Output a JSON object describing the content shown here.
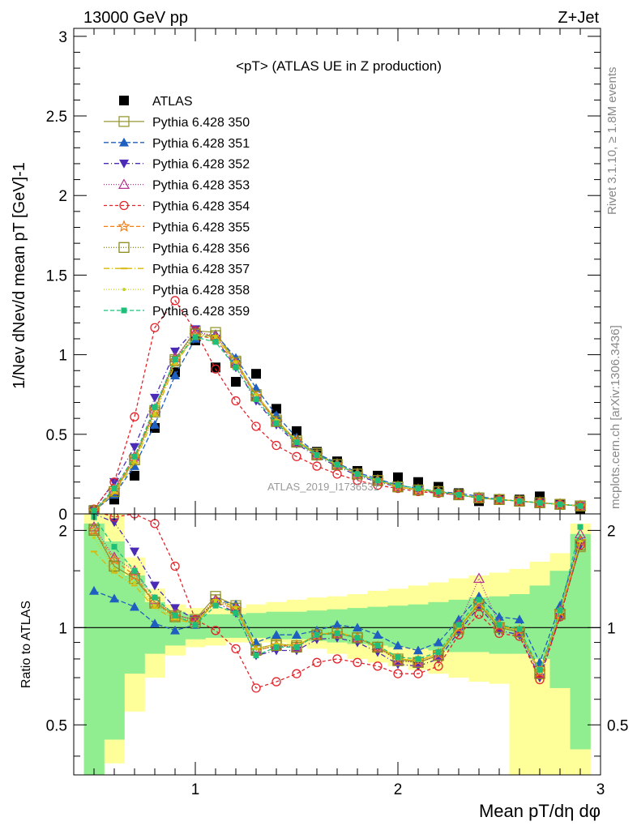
{
  "header": {
    "left": "13000 GeV pp",
    "right": "Z+Jet"
  },
  "side_labels": {
    "rivet": "Rivet 3.1.10, ≥ 1.8M events",
    "source": "mcplots.cern.ch [arXiv:1306.3436]"
  },
  "watermark": "ATLAS_2019_I1736531",
  "colors": {
    "band_green": "#90ee90",
    "band_yellow": "#ffff99",
    "data": "#000000"
  },
  "chart_data": [
    {
      "type": "line",
      "panel": "main",
      "title": "<pT> (ATLAS UE in Z production)",
      "xlabel": "Mean pT/dη dφ",
      "ylabel": "1/Nev dNev/d mean pT [GeV]-1",
      "xlim": [
        0.4,
        3.0
      ],
      "ylim": [
        0,
        3.05
      ],
      "yticks": [
        0,
        0.5,
        1,
        1.5,
        2,
        2.5,
        3
      ],
      "ytick_labels": [
        "0",
        "0.5",
        "1",
        "1.5",
        "2",
        "2.5",
        "3"
      ],
      "x": [
        0.5,
        0.6,
        0.7,
        0.8,
        0.9,
        1.0,
        1.1,
        1.2,
        1.3,
        1.4,
        1.5,
        1.6,
        1.7,
        1.8,
        1.9,
        2.0,
        2.1,
        2.2,
        2.3,
        2.4,
        2.5,
        2.6,
        2.7,
        2.8,
        2.9
      ],
      "series": [
        {
          "name": "ATLAS",
          "color": "#000000",
          "marker": "square-filled",
          "dash": "none",
          "values": [
            0.01,
            0.09,
            0.24,
            0.54,
            0.89,
            1.09,
            0.92,
            0.83,
            0.88,
            0.66,
            0.52,
            0.39,
            0.33,
            0.27,
            0.24,
            0.23,
            0.2,
            0.17,
            0.13,
            0.08,
            0.09,
            0.09,
            0.11,
            0.06,
            0.03
          ]
        },
        {
          "name": "Pythia 6.428 350",
          "color": "#999933",
          "marker": "square-open",
          "dash": "solid",
          "values": [
            0.02,
            0.14,
            0.34,
            0.65,
            0.97,
            1.15,
            1.14,
            0.96,
            0.75,
            0.59,
            0.46,
            0.38,
            0.31,
            0.25,
            0.21,
            0.17,
            0.15,
            0.14,
            0.12,
            0.1,
            0.09,
            0.08,
            0.07,
            0.06,
            0.05
          ]
        },
        {
          "name": "Pythia 6.428 351",
          "color": "#1f5fbf",
          "marker": "triangle-up-filled",
          "dash": "6,3",
          "values": [
            0.02,
            0.12,
            0.3,
            0.56,
            0.87,
            1.1,
            1.13,
            0.98,
            0.79,
            0.62,
            0.48,
            0.38,
            0.32,
            0.26,
            0.22,
            0.18,
            0.16,
            0.14,
            0.13,
            0.11,
            0.09,
            0.08,
            0.07,
            0.06,
            0.05
          ]
        },
        {
          "name": "Pythia 6.428 352",
          "color": "#4b2bb5",
          "marker": "triangle-down-filled",
          "dash": "6,3,1,3",
          "values": [
            0.03,
            0.2,
            0.42,
            0.73,
            1.02,
            1.16,
            1.1,
            0.92,
            0.71,
            0.56,
            0.44,
            0.36,
            0.3,
            0.24,
            0.2,
            0.17,
            0.15,
            0.13,
            0.12,
            0.1,
            0.09,
            0.08,
            0.07,
            0.06,
            0.05
          ]
        },
        {
          "name": "Pythia 6.428 353",
          "color": "#b5338f",
          "marker": "triangle-up-open",
          "dash": "1,2",
          "values": [
            0.02,
            0.15,
            0.36,
            0.66,
            0.98,
            1.14,
            1.12,
            0.95,
            0.74,
            0.58,
            0.45,
            0.37,
            0.31,
            0.25,
            0.21,
            0.17,
            0.15,
            0.14,
            0.12,
            0.1,
            0.09,
            0.08,
            0.07,
            0.06,
            0.05
          ]
        },
        {
          "name": "Pythia 6.428 354",
          "color": "#e3242b",
          "marker": "circle-open",
          "dash": "4,3",
          "values": [
            0.03,
            0.2,
            0.61,
            1.17,
            1.34,
            1.15,
            0.91,
            0.71,
            0.55,
            0.43,
            0.36,
            0.3,
            0.25,
            0.21,
            0.18,
            0.16,
            0.14,
            0.13,
            0.12,
            0.1,
            0.09,
            0.08,
            0.07,
            0.06,
            0.05
          ]
        },
        {
          "name": "Pythia 6.428 355",
          "color": "#ef7f1a",
          "marker": "star-open",
          "dash": "5,3",
          "values": [
            0.02,
            0.15,
            0.35,
            0.65,
            0.96,
            1.12,
            1.1,
            0.94,
            0.74,
            0.58,
            0.46,
            0.37,
            0.31,
            0.25,
            0.21,
            0.17,
            0.15,
            0.14,
            0.12,
            0.1,
            0.09,
            0.08,
            0.07,
            0.06,
            0.05
          ]
        },
        {
          "name": "Pythia 6.428 356",
          "color": "#8a8c1e",
          "marker": "square-open",
          "dash": "1,2",
          "values": [
            0.02,
            0.14,
            0.34,
            0.64,
            0.96,
            1.13,
            1.12,
            0.95,
            0.74,
            0.58,
            0.45,
            0.37,
            0.31,
            0.25,
            0.21,
            0.17,
            0.15,
            0.14,
            0.12,
            0.1,
            0.09,
            0.08,
            0.07,
            0.06,
            0.05
          ]
        },
        {
          "name": "Pythia 6.428 357",
          "color": "#d9b70c",
          "marker": "dash",
          "dash": "7,3,1,3",
          "values": [
            0.02,
            0.13,
            0.32,
            0.62,
            0.94,
            1.12,
            1.12,
            0.96,
            0.75,
            0.59,
            0.46,
            0.37,
            0.31,
            0.25,
            0.21,
            0.17,
            0.15,
            0.14,
            0.12,
            0.1,
            0.09,
            0.08,
            0.07,
            0.06,
            0.05
          ]
        },
        {
          "name": "Pythia 6.428 358",
          "color": "#c4d41c",
          "marker": "dot",
          "dash": "1,2",
          "values": [
            0.02,
            0.14,
            0.33,
            0.63,
            0.95,
            1.12,
            1.11,
            0.95,
            0.75,
            0.59,
            0.46,
            0.37,
            0.31,
            0.25,
            0.21,
            0.17,
            0.15,
            0.14,
            0.12,
            0.1,
            0.09,
            0.08,
            0.07,
            0.06,
            0.05
          ]
        },
        {
          "name": "Pythia 6.428 359",
          "color": "#1fbf7a",
          "marker": "square-small-filled",
          "dash": "5,3",
          "values": [
            0.02,
            0.16,
            0.36,
            0.67,
            0.97,
            1.11,
            1.08,
            0.92,
            0.72,
            0.57,
            0.45,
            0.37,
            0.31,
            0.25,
            0.21,
            0.18,
            0.16,
            0.14,
            0.12,
            0.1,
            0.09,
            0.08,
            0.07,
            0.06,
            0.05
          ]
        }
      ]
    },
    {
      "type": "line",
      "panel": "ratio",
      "ylabel": "Ratio to ATLAS",
      "xlabel": "Mean pT/dη dφ",
      "xlim": [
        0.4,
        3.0
      ],
      "ylim": [
        0.35,
        2.25
      ],
      "reference_line": 1,
      "xticks": [
        1,
        2,
        3
      ],
      "xtick_labels": [
        "1",
        "2",
        "3"
      ],
      "yticks": [
        0.5,
        1,
        2
      ],
      "ytick_labels": [
        "0.5",
        "1",
        "2"
      ],
      "x": [
        0.5,
        0.6,
        0.7,
        0.8,
        0.9,
        1.0,
        1.1,
        1.2,
        1.3,
        1.4,
        1.5,
        1.6,
        1.7,
        1.8,
        1.9,
        2.0,
        2.1,
        2.2,
        2.3,
        2.4,
        2.5,
        2.6,
        2.7,
        2.8,
        2.9
      ],
      "bands": {
        "green_lo": [
          0.35,
          0.45,
          0.72,
          0.83,
          0.88,
          0.92,
          0.93,
          0.93,
          0.93,
          0.92,
          0.92,
          0.91,
          0.9,
          0.89,
          0.88,
          0.87,
          0.86,
          0.85,
          0.84,
          0.84,
          0.83,
          0.83,
          0.8,
          0.65,
          0.42
        ],
        "green_hi": [
          2.1,
          1.85,
          1.45,
          1.2,
          1.12,
          1.1,
          1.1,
          1.1,
          1.11,
          1.12,
          1.12,
          1.13,
          1.14,
          1.15,
          1.16,
          1.17,
          1.18,
          1.2,
          1.22,
          1.24,
          1.25,
          1.27,
          1.35,
          1.5,
          1.95
        ],
        "yellow_lo": [
          0.35,
          0.38,
          0.55,
          0.7,
          0.82,
          0.87,
          0.88,
          0.9,
          0.9,
          0.9,
          0.88,
          0.86,
          0.83,
          0.8,
          0.78,
          0.76,
          0.74,
          0.72,
          0.7,
          0.68,
          0.67,
          0.35,
          0.35,
          0.35,
          0.35
        ],
        "yellow_hi": [
          2.25,
          2.25,
          1.65,
          1.32,
          1.18,
          1.15,
          1.15,
          1.15,
          1.18,
          1.2,
          1.22,
          1.24,
          1.25,
          1.27,
          1.3,
          1.32,
          1.35,
          1.38,
          1.42,
          1.45,
          1.48,
          1.52,
          1.6,
          1.7,
          2.1
        ]
      },
      "series": [
        {
          "name": "ATLAS",
          "color": "#000000",
          "marker": "none",
          "dash": "solid",
          "values": [
            1,
            1,
            1,
            1,
            1,
            1,
            1,
            1,
            1,
            1,
            1,
            1,
            1,
            1,
            1,
            1,
            1,
            1,
            1,
            1,
            1,
            1,
            1,
            1,
            1
          ]
        },
        {
          "name": "Pythia 6.428 350",
          "color": "#999933",
          "marker": "square-open",
          "dash": "solid",
          "values": [
            2.02,
            1.55,
            1.42,
            1.2,
            1.09,
            1.06,
            1.25,
            1.17,
            0.86,
            0.89,
            0.88,
            0.95,
            0.97,
            0.93,
            0.87,
            0.8,
            0.78,
            0.82,
            1.0,
            1.18,
            1.0,
            0.97,
            0.73,
            1.1,
            1.78
          ]
        },
        {
          "name": "Pythia 6.428 351",
          "color": "#1f5fbf",
          "marker": "triangle-up-filled",
          "dash": "6,3",
          "values": [
            1.3,
            1.23,
            1.16,
            1.03,
            0.98,
            1.02,
            1.22,
            1.18,
            0.9,
            0.95,
            0.95,
            0.98,
            1.02,
            1.0,
            0.95,
            0.88,
            0.85,
            0.9,
            1.06,
            1.25,
            1.08,
            1.06,
            0.78,
            1.17,
            1.88
          ]
        },
        {
          "name": "Pythia 6.428 352",
          "color": "#4b2bb5",
          "marker": "triangle-down-filled",
          "dash": "6,3,1,3",
          "values": [
            2.25,
            2.12,
            1.72,
            1.35,
            1.15,
            1.06,
            1.2,
            1.11,
            0.82,
            0.85,
            0.85,
            0.92,
            0.93,
            0.9,
            0.84,
            0.77,
            0.76,
            0.8,
            0.97,
            1.16,
            0.98,
            0.95,
            0.7,
            1.08,
            1.8
          ]
        },
        {
          "name": "Pythia 6.428 353",
          "color": "#b5338f",
          "marker": "triangle-up-open",
          "dash": "1,2",
          "values": [
            2.05,
            1.65,
            1.5,
            1.22,
            1.1,
            1.05,
            1.22,
            1.15,
            0.85,
            0.88,
            0.87,
            0.95,
            0.96,
            0.93,
            0.87,
            0.79,
            0.78,
            0.82,
            1.02,
            1.42,
            1.02,
            0.97,
            0.72,
            1.1,
            1.95
          ]
        },
        {
          "name": "Pythia 6.428 354",
          "color": "#e3242b",
          "marker": "circle-open",
          "dash": "4,3",
          "values": [
            2.3,
            2.2,
            2.25,
            2.1,
            1.55,
            1.06,
            0.98,
            0.86,
            0.65,
            0.68,
            0.72,
            0.78,
            0.8,
            0.78,
            0.76,
            0.72,
            0.72,
            0.76,
            0.95,
            1.1,
            0.96,
            0.94,
            0.69,
            1.08,
            1.8
          ]
        },
        {
          "name": "Pythia 6.428 355",
          "color": "#ef7f1a",
          "marker": "star-open",
          "dash": "5,3",
          "values": [
            2.0,
            1.62,
            1.45,
            1.2,
            1.08,
            1.03,
            1.2,
            1.14,
            0.85,
            0.88,
            0.88,
            0.95,
            0.96,
            0.93,
            0.87,
            0.8,
            0.79,
            0.83,
            1.0,
            1.19,
            1.02,
            0.98,
            0.73,
            1.12,
            1.85
          ]
        },
        {
          "name": "Pythia 6.428 356",
          "color": "#8a8c1e",
          "marker": "square-open",
          "dash": "1,2",
          "values": [
            2.0,
            1.55,
            1.42,
            1.19,
            1.08,
            1.04,
            1.22,
            1.15,
            0.85,
            0.88,
            0.87,
            0.95,
            0.96,
            0.93,
            0.87,
            0.79,
            0.78,
            0.82,
            0.99,
            1.18,
            1.0,
            0.97,
            0.72,
            1.1,
            1.8
          ]
        },
        {
          "name": "Pythia 6.428 357",
          "color": "#d9b70c",
          "marker": "dash",
          "dash": "7,3,1,3",
          "values": [
            1.72,
            1.48,
            1.35,
            1.15,
            1.06,
            1.03,
            1.22,
            1.16,
            0.86,
            0.89,
            0.88,
            0.95,
            0.97,
            0.93,
            0.88,
            0.8,
            0.79,
            0.83,
            1.0,
            1.2,
            1.01,
            0.98,
            0.73,
            1.11,
            1.85
          ]
        },
        {
          "name": "Pythia 6.428 358",
          "color": "#c4d41c",
          "marker": "dot",
          "dash": "1,2",
          "values": [
            1.9,
            1.52,
            1.38,
            1.17,
            1.07,
            1.03,
            1.21,
            1.15,
            0.86,
            0.89,
            0.88,
            0.95,
            0.97,
            0.93,
            0.88,
            0.8,
            0.79,
            0.83,
            1.0,
            1.2,
            1.01,
            0.98,
            0.73,
            1.11,
            1.85
          ]
        },
        {
          "name": "Pythia 6.428 359",
          "color": "#1fbf7a",
          "marker": "square-small-filled",
          "dash": "5,3",
          "values": [
            2.2,
            1.78,
            1.5,
            1.24,
            1.09,
            1.02,
            1.17,
            1.11,
            0.82,
            0.87,
            0.87,
            0.95,
            0.96,
            0.93,
            0.88,
            0.81,
            0.8,
            0.84,
            1.02,
            1.22,
            1.02,
            0.99,
            0.74,
            1.13,
            2.05
          ]
        }
      ]
    }
  ]
}
